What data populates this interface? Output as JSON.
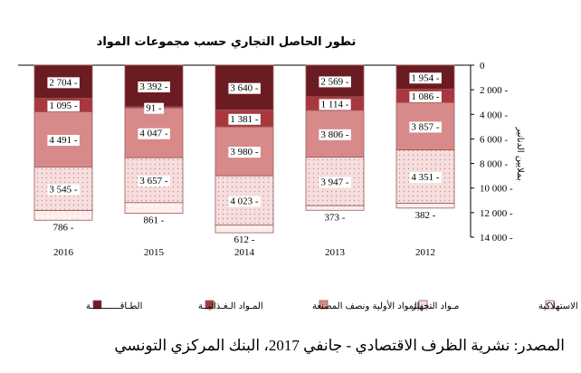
{
  "colors": {
    "energy": "#6b1c22",
    "food": "#a8383e",
    "raw": "#d88a8a",
    "equipment": "#f4d6d6",
    "consumer": "#fbe9e7",
    "outline": "#9a5a5a"
  },
  "source": "المصدر: نشرية الظرف الاقتصادي - جانفي 2017، البنك المركزي التونسي",
  "chart_data": {
    "type": "bar",
    "stacked": true,
    "y_inverted": true,
    "title": "تطور الحاصل التجاري حسب مجموعات المواد",
    "ylabel": "بملايين الدنانير",
    "ylim": [
      0,
      14000
    ],
    "yticks": [
      "0",
      "2 000 -",
      "4 000 -",
      "6 000 -",
      "8 000 -",
      "10 000 -",
      "12 000 -",
      "14 000 -"
    ],
    "categories": [
      "2016",
      "2015",
      "2014",
      "2013",
      "2012"
    ],
    "series": [
      {
        "name": "الطـاقـــــــــــة",
        "key": "energy",
        "values": [
          2704,
          3392,
          3640,
          2569,
          1954
        ],
        "labels": [
          "2 704 -",
          "3 392 -",
          "3 640 -",
          "2 569 -",
          "1 954 -"
        ]
      },
      {
        "name": "المـواد الـغـذائيــة",
        "key": "food",
        "values": [
          1095,
          91,
          1381,
          1114,
          1086
        ],
        "labels": [
          "1 095 -",
          "91 -",
          "1 381 -",
          "1 114 -",
          "1 086 -"
        ]
      },
      {
        "name": "المواد الأولية ونصف المصنعة",
        "key": "raw",
        "values": [
          4491,
          4047,
          3980,
          3806,
          3857
        ],
        "labels": [
          "4 491 -",
          "4 047 -",
          "3 980 -",
          "3 806 -",
          "3 857 -"
        ]
      },
      {
        "name": "مـواد التجهيز",
        "key": "equipment",
        "values": [
          3545,
          3657,
          4023,
          3947,
          4351
        ],
        "labels": [
          "3 545 -",
          "3 657 -",
          "4 023 -",
          "3 947 -",
          "4 351 -"
        ]
      },
      {
        "name": "الـمـواد الاستهلاكية",
        "key": "consumer",
        "values": [
          786,
          861,
          612,
          373,
          382
        ],
        "labels": [
          "786 -",
          "861 -",
          "612 -",
          "373 -",
          "382 -"
        ]
      }
    ],
    "legend": "bottom"
  }
}
